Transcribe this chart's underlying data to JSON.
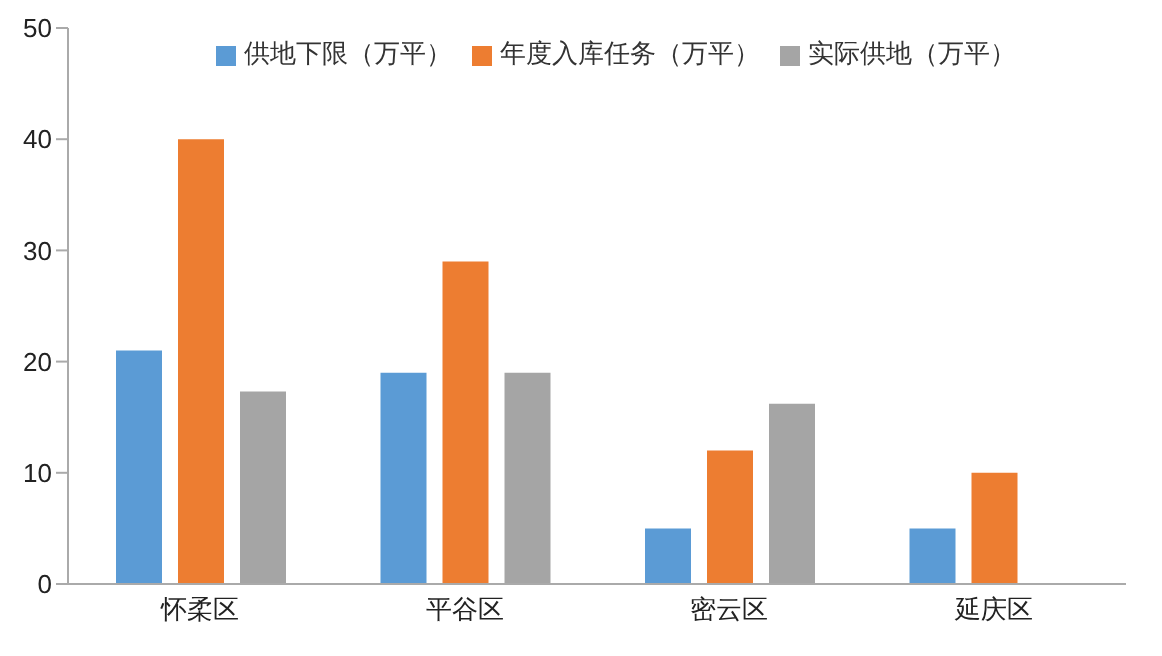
{
  "chart_data": {
    "type": "bar",
    "categories": [
      "怀柔区",
      "平谷区",
      "密云区",
      "延庆区"
    ],
    "series": [
      {
        "name": "供地下限（万平）",
        "color": "#5b9bd5",
        "values": [
          21,
          19,
          5,
          5
        ]
      },
      {
        "name": "年度入库任务（万平）",
        "color": "#ed7d31",
        "values": [
          40,
          29,
          12,
          10
        ]
      },
      {
        "name": "实际供地（万平）",
        "color": "#a5a5a5",
        "values": [
          17.3,
          19,
          16.2,
          null
        ]
      }
    ],
    "ylim": [
      0,
      50
    ],
    "yticks": [
      0,
      10,
      20,
      30,
      40,
      50
    ],
    "grid": false,
    "legend": "top"
  }
}
